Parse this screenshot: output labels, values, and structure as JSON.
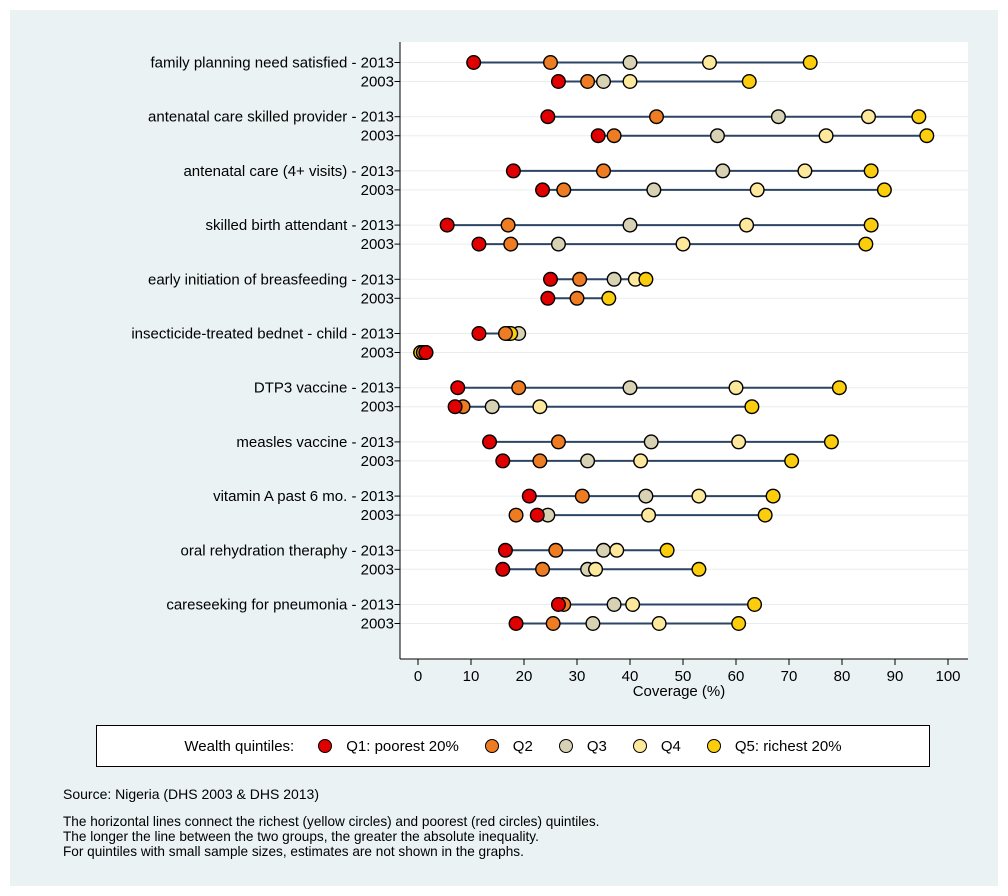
{
  "chart_data": {
    "type": "scatter",
    "title": "",
    "xlabel": "Coverage (%)",
    "ylabel": "",
    "xlim": [
      0,
      100
    ],
    "xticks": [
      "0",
      "10",
      "20",
      "30",
      "40",
      "50",
      "60",
      "70",
      "80",
      "90",
      "100"
    ],
    "grid": "horizontal",
    "colors": {
      "Q1": "#e00000",
      "Q2": "#ee7c22",
      "Q3": "#d8d2b4",
      "Q4": "#fde89c",
      "Q5": "#fbcd0c",
      "line": "#2c4565"
    },
    "indicators": [
      {
        "label": "family planning need satisfied - 2013",
        "values": [
          10.5,
          25.0,
          40.0,
          55.0,
          74.0
        ]
      },
      {
        "label": "2003",
        "values": [
          26.5,
          32.0,
          35.0,
          40.0,
          62.5
        ]
      },
      {
        "label": "antenatal care skilled provider - 2013",
        "values": [
          24.5,
          45.0,
          68.0,
          85.0,
          94.5
        ]
      },
      {
        "label": "2003",
        "values": [
          34.0,
          37.0,
          56.5,
          77.0,
          96.0
        ]
      },
      {
        "label": "antenatal care (4+ visits) - 2013",
        "values": [
          18.0,
          35.0,
          57.5,
          73.0,
          85.5
        ]
      },
      {
        "label": "2003",
        "values": [
          23.5,
          27.5,
          44.5,
          64.0,
          88.0
        ]
      },
      {
        "label": "skilled birth attendant - 2013",
        "values": [
          5.5,
          17.0,
          40.0,
          62.0,
          85.5
        ]
      },
      {
        "label": "2003",
        "values": [
          11.5,
          17.5,
          26.5,
          50.0,
          84.5
        ]
      },
      {
        "label": "early initiation of breasfeeding - 2013",
        "values": [
          25.0,
          30.5,
          37.0,
          41.0,
          43.0
        ]
      },
      {
        "label": "2003",
        "values": [
          24.5,
          30.0,
          null,
          null,
          36.0
        ]
      },
      {
        "label": "insecticide-treated bednet - child - 2013",
        "values": [
          11.5,
          16.5,
          19.0,
          17.0,
          17.5
        ]
      },
      {
        "label": "2003",
        "values": [
          1.5,
          1.0,
          1.5,
          0.5,
          0.5
        ]
      },
      {
        "label": "DTP3 vaccine - 2013",
        "values": [
          7.5,
          19.0,
          40.0,
          60.0,
          79.5
        ]
      },
      {
        "label": "2003",
        "values": [
          7.0,
          8.5,
          14.0,
          23.0,
          63.0
        ]
      },
      {
        "label": "measles vaccine - 2013",
        "values": [
          13.5,
          26.5,
          44.0,
          60.5,
          78.0
        ]
      },
      {
        "label": "2003",
        "values": [
          16.0,
          23.0,
          32.0,
          42.0,
          70.5
        ]
      },
      {
        "label": "vitamin A past 6 mo. - 2013",
        "values": [
          21.0,
          31.0,
          43.0,
          53.0,
          67.0
        ]
      },
      {
        "label": "2003",
        "values": [
          22.5,
          18.5,
          24.5,
          43.5,
          65.5
        ]
      },
      {
        "label": "oral rehydration theraphy - 2013",
        "values": [
          16.5,
          26.0,
          35.0,
          37.5,
          47.0
        ]
      },
      {
        "label": "2003",
        "values": [
          16.0,
          23.5,
          32.0,
          33.5,
          53.0
        ]
      },
      {
        "label": "careseeking for pneumonia - 2013",
        "values": [
          26.5,
          27.5,
          37.0,
          40.5,
          63.5
        ]
      },
      {
        "label": "2003",
        "values": [
          18.5,
          25.5,
          33.0,
          45.5,
          60.5
        ]
      }
    ]
  },
  "legend": {
    "title": "Wealth quintiles:",
    "items": [
      {
        "label": "Q1: poorest 20%",
        "color": "#e00000"
      },
      {
        "label": "Q2",
        "color": "#ee7c22"
      },
      {
        "label": "Q3",
        "color": "#d8d2b4"
      },
      {
        "label": "Q4",
        "color": "#fde89c"
      },
      {
        "label": "Q5: richest 20%",
        "color": "#fbcd0c"
      }
    ]
  },
  "source": "Source: Nigeria (DHS 2003 & DHS 2013)",
  "notes": [
    "The horizontal lines connect the richest (yellow circles) and poorest (red circles) quintiles.",
    "The longer the line between the two groups, the greater the absolute inequality.",
    "For quintiles with small sample sizes, estimates are not shown in the graphs."
  ]
}
